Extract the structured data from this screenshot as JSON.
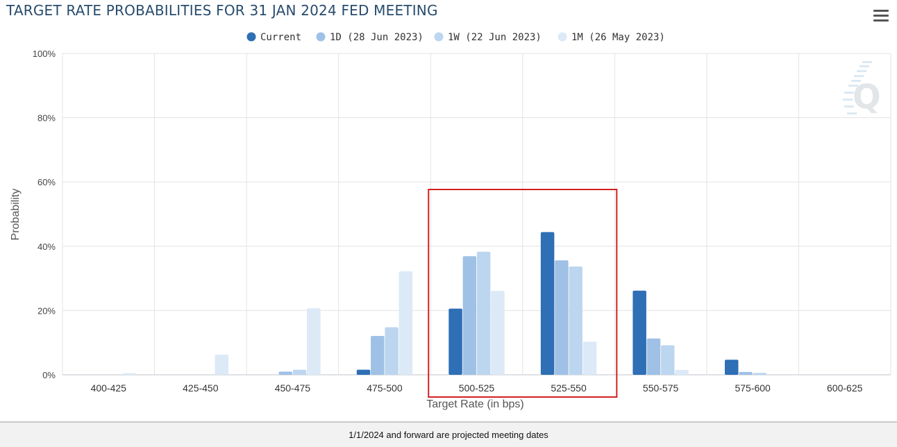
{
  "title": "TARGET RATE PROBABILITIES FOR 31 JAN 2024 FED MEETING",
  "footer_note": "1/1/2024 and forward are projected meeting dates",
  "watermark_icon": "cme-q-logo-icon",
  "menu_icon": "hamburger-menu-icon",
  "highlight_color": "#d42020",
  "chart_data": {
    "type": "bar",
    "xlabel": "Target Rate (in bps)",
    "ylabel": "Probability",
    "ylim": [
      0,
      100
    ],
    "yticks": [
      "0%",
      "20%",
      "40%",
      "60%",
      "80%",
      "100%"
    ],
    "categories": [
      "400-425",
      "425-450",
      "450-475",
      "475-500",
      "500-525",
      "525-550",
      "550-575",
      "575-600",
      "600-625"
    ],
    "series": [
      {
        "name": "Current",
        "color": "#2e6fb5",
        "values": [
          0,
          0,
          0,
          1.6,
          20.6,
          44.4,
          26.2,
          4.7,
          0
        ]
      },
      {
        "name": "1D (28 Jun 2023)",
        "color": "#9fc1e6",
        "values": [
          0,
          0,
          1.0,
          12.1,
          36.9,
          35.6,
          11.3,
          0.9,
          0
        ]
      },
      {
        "name": "1W (22 Jun 2023)",
        "color": "#bdd6ef",
        "values": [
          0,
          0,
          1.6,
          14.8,
          38.3,
          33.7,
          9.2,
          0.6,
          0
        ]
      },
      {
        "name": "1M (26 May 2023)",
        "color": "#dce9f6",
        "values": [
          0.5,
          6.3,
          20.7,
          32.2,
          26.1,
          10.3,
          1.5,
          0,
          0
        ]
      }
    ],
    "legend_position": "top-center",
    "grid": true,
    "highlighted_categories": [
      "500-525",
      "525-550"
    ]
  }
}
